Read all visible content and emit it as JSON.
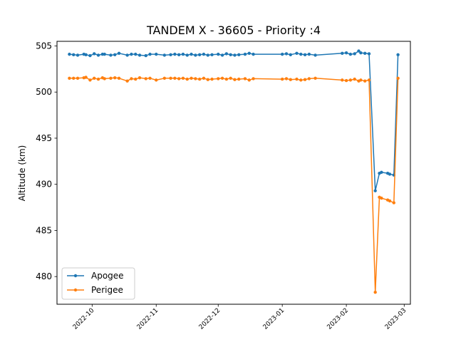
{
  "chart_data": {
    "type": "line",
    "title": "TANDEM X - 36605 - Priority :4",
    "xlabel": "",
    "ylabel": "Altitude (km)",
    "x_type": "date",
    "xlim": [
      "2022-09-14",
      "2023-03-04"
    ],
    "ylim": [
      477,
      505.5
    ],
    "yticks": [
      480,
      485,
      490,
      495,
      500,
      505
    ],
    "xticks": [
      "2022-10",
      "2022-11",
      "2022-12",
      "2023-01",
      "2023-02",
      "2023-03"
    ],
    "grid": false,
    "legend_position": "lower-left",
    "x": [
      "2022-09-20",
      "2022-09-22",
      "2022-09-24",
      "2022-09-27",
      "2022-09-28",
      "2022-09-30",
      "2022-10-02",
      "2022-10-04",
      "2022-10-06",
      "2022-10-07",
      "2022-10-10",
      "2022-10-12",
      "2022-10-14",
      "2022-10-18",
      "2022-10-20",
      "2022-10-22",
      "2022-10-24",
      "2022-10-27",
      "2022-10-29",
      "2022-11-01",
      "2022-11-05",
      "2022-11-08",
      "2022-11-10",
      "2022-11-12",
      "2022-11-14",
      "2022-11-16",
      "2022-11-18",
      "2022-11-20",
      "2022-11-22",
      "2022-11-24",
      "2022-11-26",
      "2022-11-28",
      "2022-12-01",
      "2022-12-03",
      "2022-12-05",
      "2022-12-07",
      "2022-12-09",
      "2022-12-11",
      "2022-12-14",
      "2022-12-16",
      "2022-12-18",
      "2023-01-01",
      "2023-01-03",
      "2023-01-05",
      "2023-01-08",
      "2023-01-10",
      "2023-01-12",
      "2023-01-14",
      "2023-01-17",
      "2023-01-30",
      "2023-02-01",
      "2023-02-03",
      "2023-02-05",
      "2023-02-07",
      "2023-02-08",
      "2023-02-10",
      "2023-02-12",
      "2023-02-15",
      "2023-02-17",
      "2023-02-18",
      "2023-02-21",
      "2023-02-22",
      "2023-02-24",
      "2023-02-26"
    ],
    "series": [
      {
        "name": "Apogee",
        "color": "#1f77b4",
        "values": [
          504.1,
          504.05,
          504.0,
          504.1,
          504.05,
          503.95,
          504.15,
          504.0,
          504.1,
          504.1,
          504.0,
          504.05,
          504.2,
          504.0,
          504.1,
          504.1,
          504.0,
          503.95,
          504.1,
          504.1,
          504.0,
          504.05,
          504.1,
          504.05,
          504.1,
          504.0,
          504.1,
          504.0,
          504.05,
          504.1,
          504.0,
          504.05,
          504.1,
          504.0,
          504.15,
          504.05,
          504.0,
          504.05,
          504.1,
          504.2,
          504.1,
          504.1,
          504.15,
          504.05,
          504.2,
          504.1,
          504.05,
          504.1,
          504.0,
          504.2,
          504.25,
          504.1,
          504.15,
          504.45,
          504.25,
          504.2,
          504.15,
          489.3,
          491.2,
          491.3,
          491.2,
          491.1,
          491.0,
          504.05
        ]
      },
      {
        "name": "Perigee",
        "color": "#ff7f0e",
        "values": [
          501.5,
          501.5,
          501.5,
          501.55,
          501.6,
          501.3,
          501.5,
          501.4,
          501.55,
          501.45,
          501.5,
          501.55,
          501.5,
          501.2,
          501.45,
          501.4,
          501.55,
          501.45,
          501.5,
          501.3,
          501.5,
          501.5,
          501.5,
          501.45,
          501.5,
          501.4,
          501.5,
          501.45,
          501.4,
          501.5,
          501.35,
          501.4,
          501.45,
          501.5,
          501.4,
          501.5,
          501.35,
          501.4,
          501.45,
          501.3,
          501.45,
          501.4,
          501.45,
          501.35,
          501.4,
          501.3,
          501.35,
          501.45,
          501.5,
          501.3,
          501.25,
          501.3,
          501.4,
          501.2,
          501.3,
          501.2,
          501.3,
          478.3,
          488.6,
          488.5,
          488.3,
          488.2,
          488.0,
          501.5
        ]
      }
    ]
  }
}
